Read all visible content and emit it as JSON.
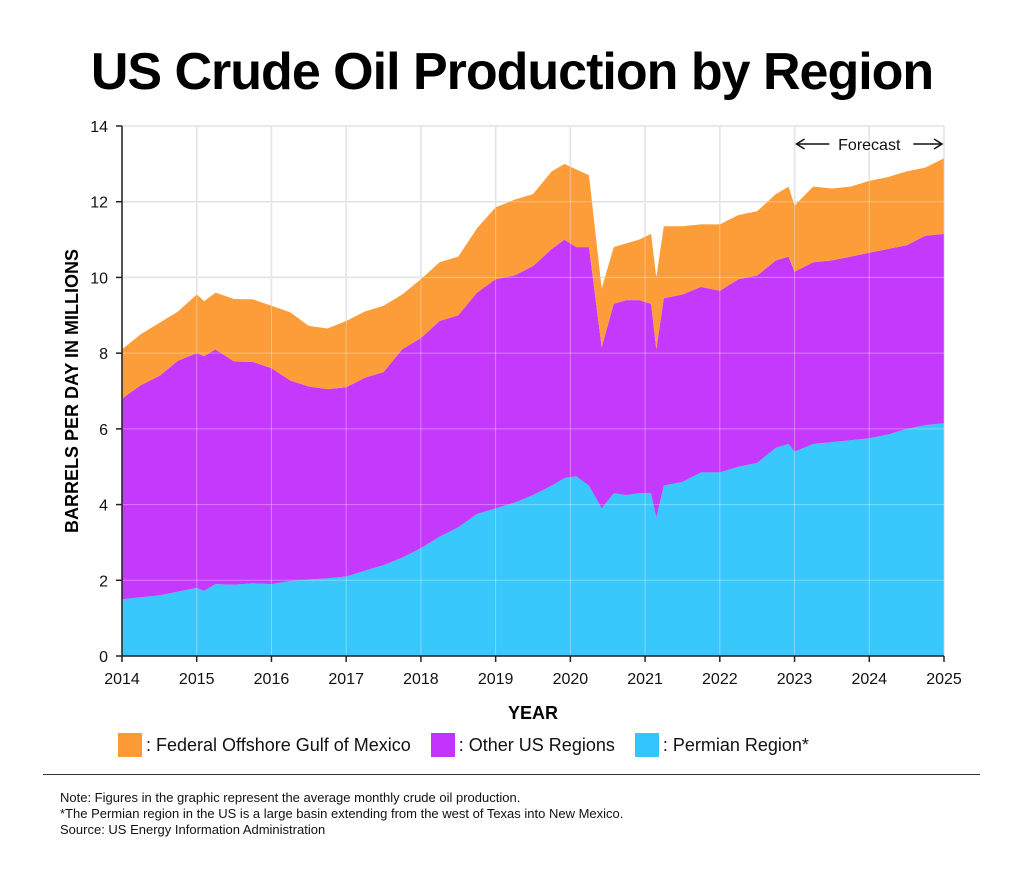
{
  "chart_data": {
    "type": "area",
    "stacked": true,
    "title": "US Crude Oil Production by Region",
    "xlabel": "YEAR",
    "ylabel": "BARRELS PER DAY IN MILLIONS",
    "xlim": [
      2014,
      2025
    ],
    "ylim": [
      0,
      14
    ],
    "x_ticks": [
      "2014",
      "2015",
      "2016",
      "2017",
      "2018",
      "2019",
      "2020",
      "2021",
      "2022",
      "2023",
      "2024",
      "2025"
    ],
    "y_ticks": [
      "0",
      "2",
      "4",
      "6",
      "8",
      "10",
      "12",
      "14"
    ],
    "grid": true,
    "forecast": {
      "label": "Forecast",
      "start": 2023,
      "end": 2025
    },
    "x": [
      2014.0,
      2014.25,
      2014.5,
      2014.75,
      2015.0,
      2015.1,
      2015.25,
      2015.5,
      2015.75,
      2016.0,
      2016.25,
      2016.5,
      2016.75,
      2017.0,
      2017.25,
      2017.5,
      2017.75,
      2018.0,
      2018.25,
      2018.5,
      2018.75,
      2019.0,
      2019.25,
      2019.5,
      2019.75,
      2019.92,
      2020.08,
      2020.25,
      2020.42,
      2020.58,
      2020.75,
      2020.92,
      2021.08,
      2021.15,
      2021.25,
      2021.5,
      2021.75,
      2022.0,
      2022.25,
      2022.5,
      2022.75,
      2022.92,
      2023.0,
      2023.25,
      2023.5,
      2023.75,
      2024.0,
      2024.25,
      2024.5,
      2024.75,
      2025.0
    ],
    "series": [
      {
        "name": "Permian Region*",
        "color": "#33c6fc",
        "values": [
          1.5,
          1.55,
          1.6,
          1.7,
          1.8,
          1.72,
          1.9,
          1.88,
          1.92,
          1.9,
          1.98,
          2.02,
          2.05,
          2.1,
          2.25,
          2.4,
          2.6,
          2.85,
          3.15,
          3.4,
          3.75,
          3.9,
          4.05,
          4.25,
          4.5,
          4.7,
          4.75,
          4.5,
          3.9,
          4.3,
          4.25,
          4.3,
          4.3,
          3.65,
          4.5,
          4.6,
          4.85,
          4.85,
          5.0,
          5.1,
          5.5,
          5.6,
          5.4,
          5.6,
          5.65,
          5.7,
          5.75,
          5.85,
          6.0,
          6.1,
          6.15
        ]
      },
      {
        "name": "Other US Regions",
        "color": "#c333fc",
        "values": [
          5.3,
          5.6,
          5.8,
          6.1,
          6.2,
          6.2,
          6.2,
          5.9,
          5.85,
          5.7,
          5.3,
          5.1,
          5.0,
          5.0,
          5.1,
          5.1,
          5.5,
          5.55,
          5.7,
          5.6,
          5.85,
          6.05,
          6.0,
          6.05,
          6.25,
          6.3,
          6.05,
          6.3,
          4.25,
          5.0,
          5.15,
          5.1,
          5.0,
          4.45,
          4.95,
          4.95,
          4.9,
          4.8,
          4.95,
          4.95,
          4.95,
          4.95,
          4.75,
          4.8,
          4.8,
          4.85,
          4.9,
          4.9,
          4.85,
          5.0,
          5.0
        ]
      },
      {
        "name": "Federal Offshore Gulf of Mexico",
        "color": "#fc9a33",
        "values": [
          1.3,
          1.35,
          1.4,
          1.3,
          1.55,
          1.45,
          1.5,
          1.65,
          1.65,
          1.65,
          1.8,
          1.6,
          1.6,
          1.75,
          1.75,
          1.75,
          1.45,
          1.55,
          1.55,
          1.55,
          1.7,
          1.9,
          2.0,
          1.9,
          2.05,
          2.0,
          2.05,
          1.9,
          1.55,
          1.5,
          1.5,
          1.6,
          1.85,
          1.9,
          1.9,
          1.8,
          1.65,
          1.75,
          1.7,
          1.7,
          1.75,
          1.85,
          1.75,
          2.0,
          1.9,
          1.85,
          1.9,
          1.9,
          1.95,
          1.8,
          2.0
        ]
      }
    ]
  },
  "legend": [
    {
      "label": ": Federal Offshore Gulf of Mexico",
      "color": "#fc9a33"
    },
    {
      "label": ": Other US Regions",
      "color": "#c333fc"
    },
    {
      "label": ": Permian Region*",
      "color": "#33c6fc"
    }
  ],
  "notes": [
    "Note: Figures in the graphic represent the average monthly crude oil production.",
    "*The Permian region in the US is a large basin extending from the west of Texas into New Mexico.",
    "Source: US Energy Information Administration"
  ]
}
